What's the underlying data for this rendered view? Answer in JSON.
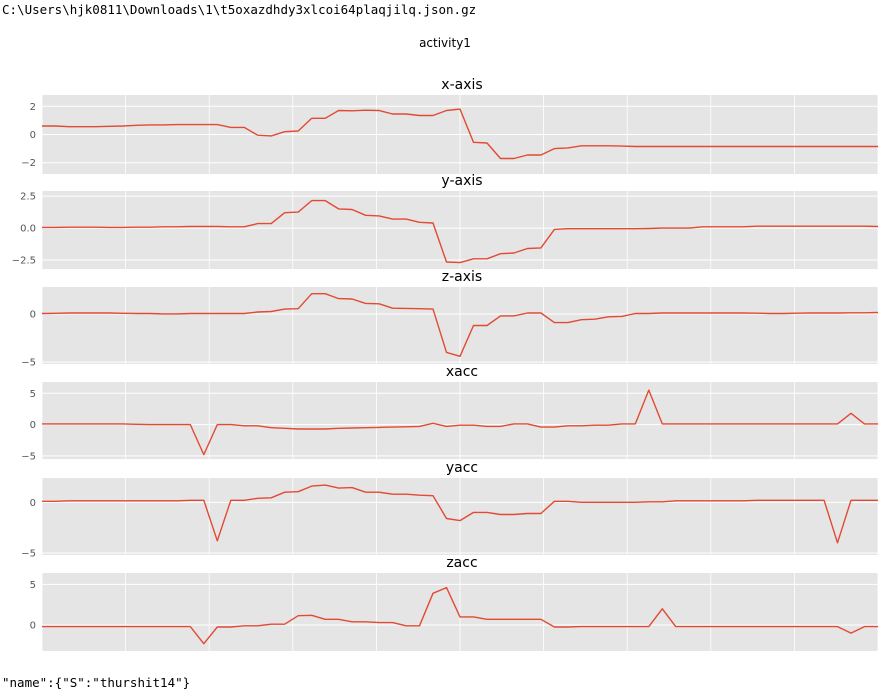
{
  "window": {
    "path": "C:\\Users\\hjk0811\\Downloads\\1\\t5oxazdhdy3xlcoi64plaqjilq.json.gz",
    "footer": "\"name\":{\"S\":\"thurshit14\"}"
  },
  "colors": {
    "line": "#e24a33",
    "panel_bg": "#e5e5e5",
    "grid": "#ffffff"
  },
  "chart_data": {
    "type": "line",
    "title": "activity1",
    "grid": true,
    "panels": [
      {
        "title": "x-axis",
        "ylim": [
          -2.8,
          2.8
        ],
        "yticks": [
          2,
          0,
          -2
        ],
        "ytick_labels": [
          "2",
          "0",
          "−2"
        ],
        "values": [
          0.6,
          0.6,
          0.55,
          0.55,
          0.55,
          0.58,
          0.6,
          0.65,
          0.68,
          0.68,
          0.7,
          0.7,
          0.7,
          0.7,
          0.5,
          0.5,
          -0.05,
          -0.1,
          0.2,
          0.25,
          1.15,
          1.15,
          1.7,
          1.68,
          1.72,
          1.7,
          1.45,
          1.45,
          1.35,
          1.35,
          1.7,
          1.8,
          -0.55,
          -0.6,
          -1.7,
          -1.7,
          -1.45,
          -1.45,
          -1.0,
          -0.95,
          -0.8,
          -0.8,
          -0.8,
          -0.82,
          -0.85,
          -0.85,
          -0.85,
          -0.85,
          -0.85,
          -0.85,
          -0.85,
          -0.85,
          -0.85,
          -0.85,
          -0.85,
          -0.85,
          -0.85,
          -0.85,
          -0.85,
          -0.85,
          -0.85,
          -0.85,
          -0.85
        ]
      },
      {
        "title": "y-axis",
        "ylim": [
          -3.2,
          2.9
        ],
        "yticks": [
          2.5,
          0.0,
          -2.5
        ],
        "ytick_labels": [
          "2.5",
          "0.0",
          "−2.5"
        ],
        "values": [
          0.05,
          0.05,
          0.07,
          0.07,
          0.07,
          0.05,
          0.05,
          0.07,
          0.07,
          0.1,
          0.1,
          0.12,
          0.12,
          0.12,
          0.1,
          0.1,
          0.35,
          0.35,
          1.2,
          1.25,
          2.15,
          2.15,
          1.5,
          1.45,
          1.0,
          0.95,
          0.7,
          0.7,
          0.45,
          0.4,
          -2.65,
          -2.7,
          -2.4,
          -2.4,
          -2.0,
          -1.95,
          -1.6,
          -1.55,
          -0.1,
          -0.05,
          -0.05,
          -0.05,
          -0.05,
          -0.05,
          -0.05,
          -0.03,
          0.0,
          0.0,
          0.0,
          0.1,
          0.1,
          0.1,
          0.1,
          0.15,
          0.15,
          0.15,
          0.15,
          0.15,
          0.15,
          0.15,
          0.15,
          0.15,
          0.12
        ]
      },
      {
        "title": "z-axis",
        "ylim": [
          -5.2,
          2.8
        ],
        "yticks": [
          0,
          -5
        ],
        "ytick_labels": [
          "0",
          "−5"
        ],
        "values": [
          0.05,
          0.07,
          0.1,
          0.1,
          0.1,
          0.1,
          0.07,
          0.05,
          0.05,
          0.0,
          0.0,
          0.05,
          0.05,
          0.05,
          0.05,
          0.05,
          0.2,
          0.25,
          0.5,
          0.55,
          2.1,
          2.1,
          1.6,
          1.55,
          1.1,
          1.05,
          0.6,
          0.58,
          0.55,
          0.5,
          -4.0,
          -4.4,
          -1.2,
          -1.2,
          -0.2,
          -0.2,
          0.1,
          0.1,
          -0.9,
          -0.9,
          -0.6,
          -0.55,
          -0.3,
          -0.25,
          0.05,
          0.05,
          0.1,
          0.1,
          0.1,
          0.1,
          0.1,
          0.1,
          0.1,
          0.08,
          0.05,
          0.05,
          0.08,
          0.1,
          0.1,
          0.1,
          0.12,
          0.12,
          0.15
        ]
      },
      {
        "title": "xacc",
        "ylim": [
          -5.5,
          6.8
        ],
        "yticks": [
          5,
          0,
          -5
        ],
        "ytick_labels": [
          "5",
          "0",
          "−5"
        ],
        "values": [
          0.1,
          0.1,
          0.1,
          0.1,
          0.1,
          0.1,
          0.1,
          0.05,
          0.0,
          0.0,
          0.0,
          0.0,
          -4.8,
          0.0,
          0.0,
          -0.2,
          -0.2,
          -0.5,
          -0.6,
          -0.7,
          -0.7,
          -0.7,
          -0.6,
          -0.55,
          -0.5,
          -0.45,
          -0.4,
          -0.35,
          -0.3,
          0.2,
          -0.3,
          -0.1,
          -0.1,
          -0.3,
          -0.3,
          0.1,
          0.1,
          -0.4,
          -0.4,
          -0.2,
          -0.2,
          -0.1,
          -0.1,
          0.1,
          0.1,
          5.5,
          0.1,
          0.1,
          0.1,
          0.1,
          0.1,
          0.1,
          0.1,
          0.1,
          0.1,
          0.1,
          0.1,
          0.1,
          0.1,
          0.1,
          1.8,
          0.1,
          0.1
        ]
      },
      {
        "title": "yacc",
        "ylim": [
          -5.2,
          2.4
        ],
        "yticks": [
          0,
          -5
        ],
        "ytick_labels": [
          "0",
          "−5"
        ],
        "values": [
          0.1,
          0.1,
          0.15,
          0.15,
          0.15,
          0.15,
          0.15,
          0.15,
          0.15,
          0.15,
          0.15,
          0.2,
          0.2,
          -3.8,
          0.2,
          0.2,
          0.4,
          0.45,
          1.0,
          1.05,
          1.6,
          1.7,
          1.4,
          1.45,
          1.0,
          1.0,
          0.8,
          0.8,
          0.7,
          0.65,
          -1.6,
          -1.8,
          -1.0,
          -1.0,
          -1.2,
          -1.2,
          -1.1,
          -1.1,
          0.1,
          0.1,
          0.0,
          0.0,
          0.0,
          0.0,
          0.0,
          0.05,
          0.05,
          0.15,
          0.15,
          0.15,
          0.15,
          0.15,
          0.15,
          0.2,
          0.2,
          0.2,
          0.2,
          0.2,
          0.2,
          -4.0,
          0.2,
          0.2,
          0.2
        ]
      },
      {
        "title": "zacc",
        "ylim": [
          -3.2,
          6.4
        ],
        "yticks": [
          5,
          0
        ],
        "ytick_labels": [
          "5",
          "0"
        ],
        "values": [
          -0.2,
          -0.2,
          -0.2,
          -0.2,
          -0.2,
          -0.2,
          -0.2,
          -0.2,
          -0.2,
          -0.2,
          -0.2,
          -0.2,
          -2.3,
          -0.25,
          -0.25,
          -0.1,
          -0.1,
          0.1,
          0.1,
          1.15,
          1.2,
          0.7,
          0.7,
          0.4,
          0.4,
          0.3,
          0.3,
          -0.1,
          -0.1,
          3.9,
          4.6,
          1.0,
          1.0,
          0.7,
          0.7,
          0.7,
          0.7,
          0.7,
          -0.25,
          -0.25,
          -0.2,
          -0.2,
          -0.2,
          -0.2,
          -0.2,
          -0.2,
          2.0,
          -0.2,
          -0.2,
          -0.2,
          -0.2,
          -0.2,
          -0.2,
          -0.2,
          -0.2,
          -0.2,
          -0.2,
          -0.2,
          -0.2,
          -0.2,
          -1.0,
          -0.2,
          -0.2
        ]
      }
    ]
  }
}
